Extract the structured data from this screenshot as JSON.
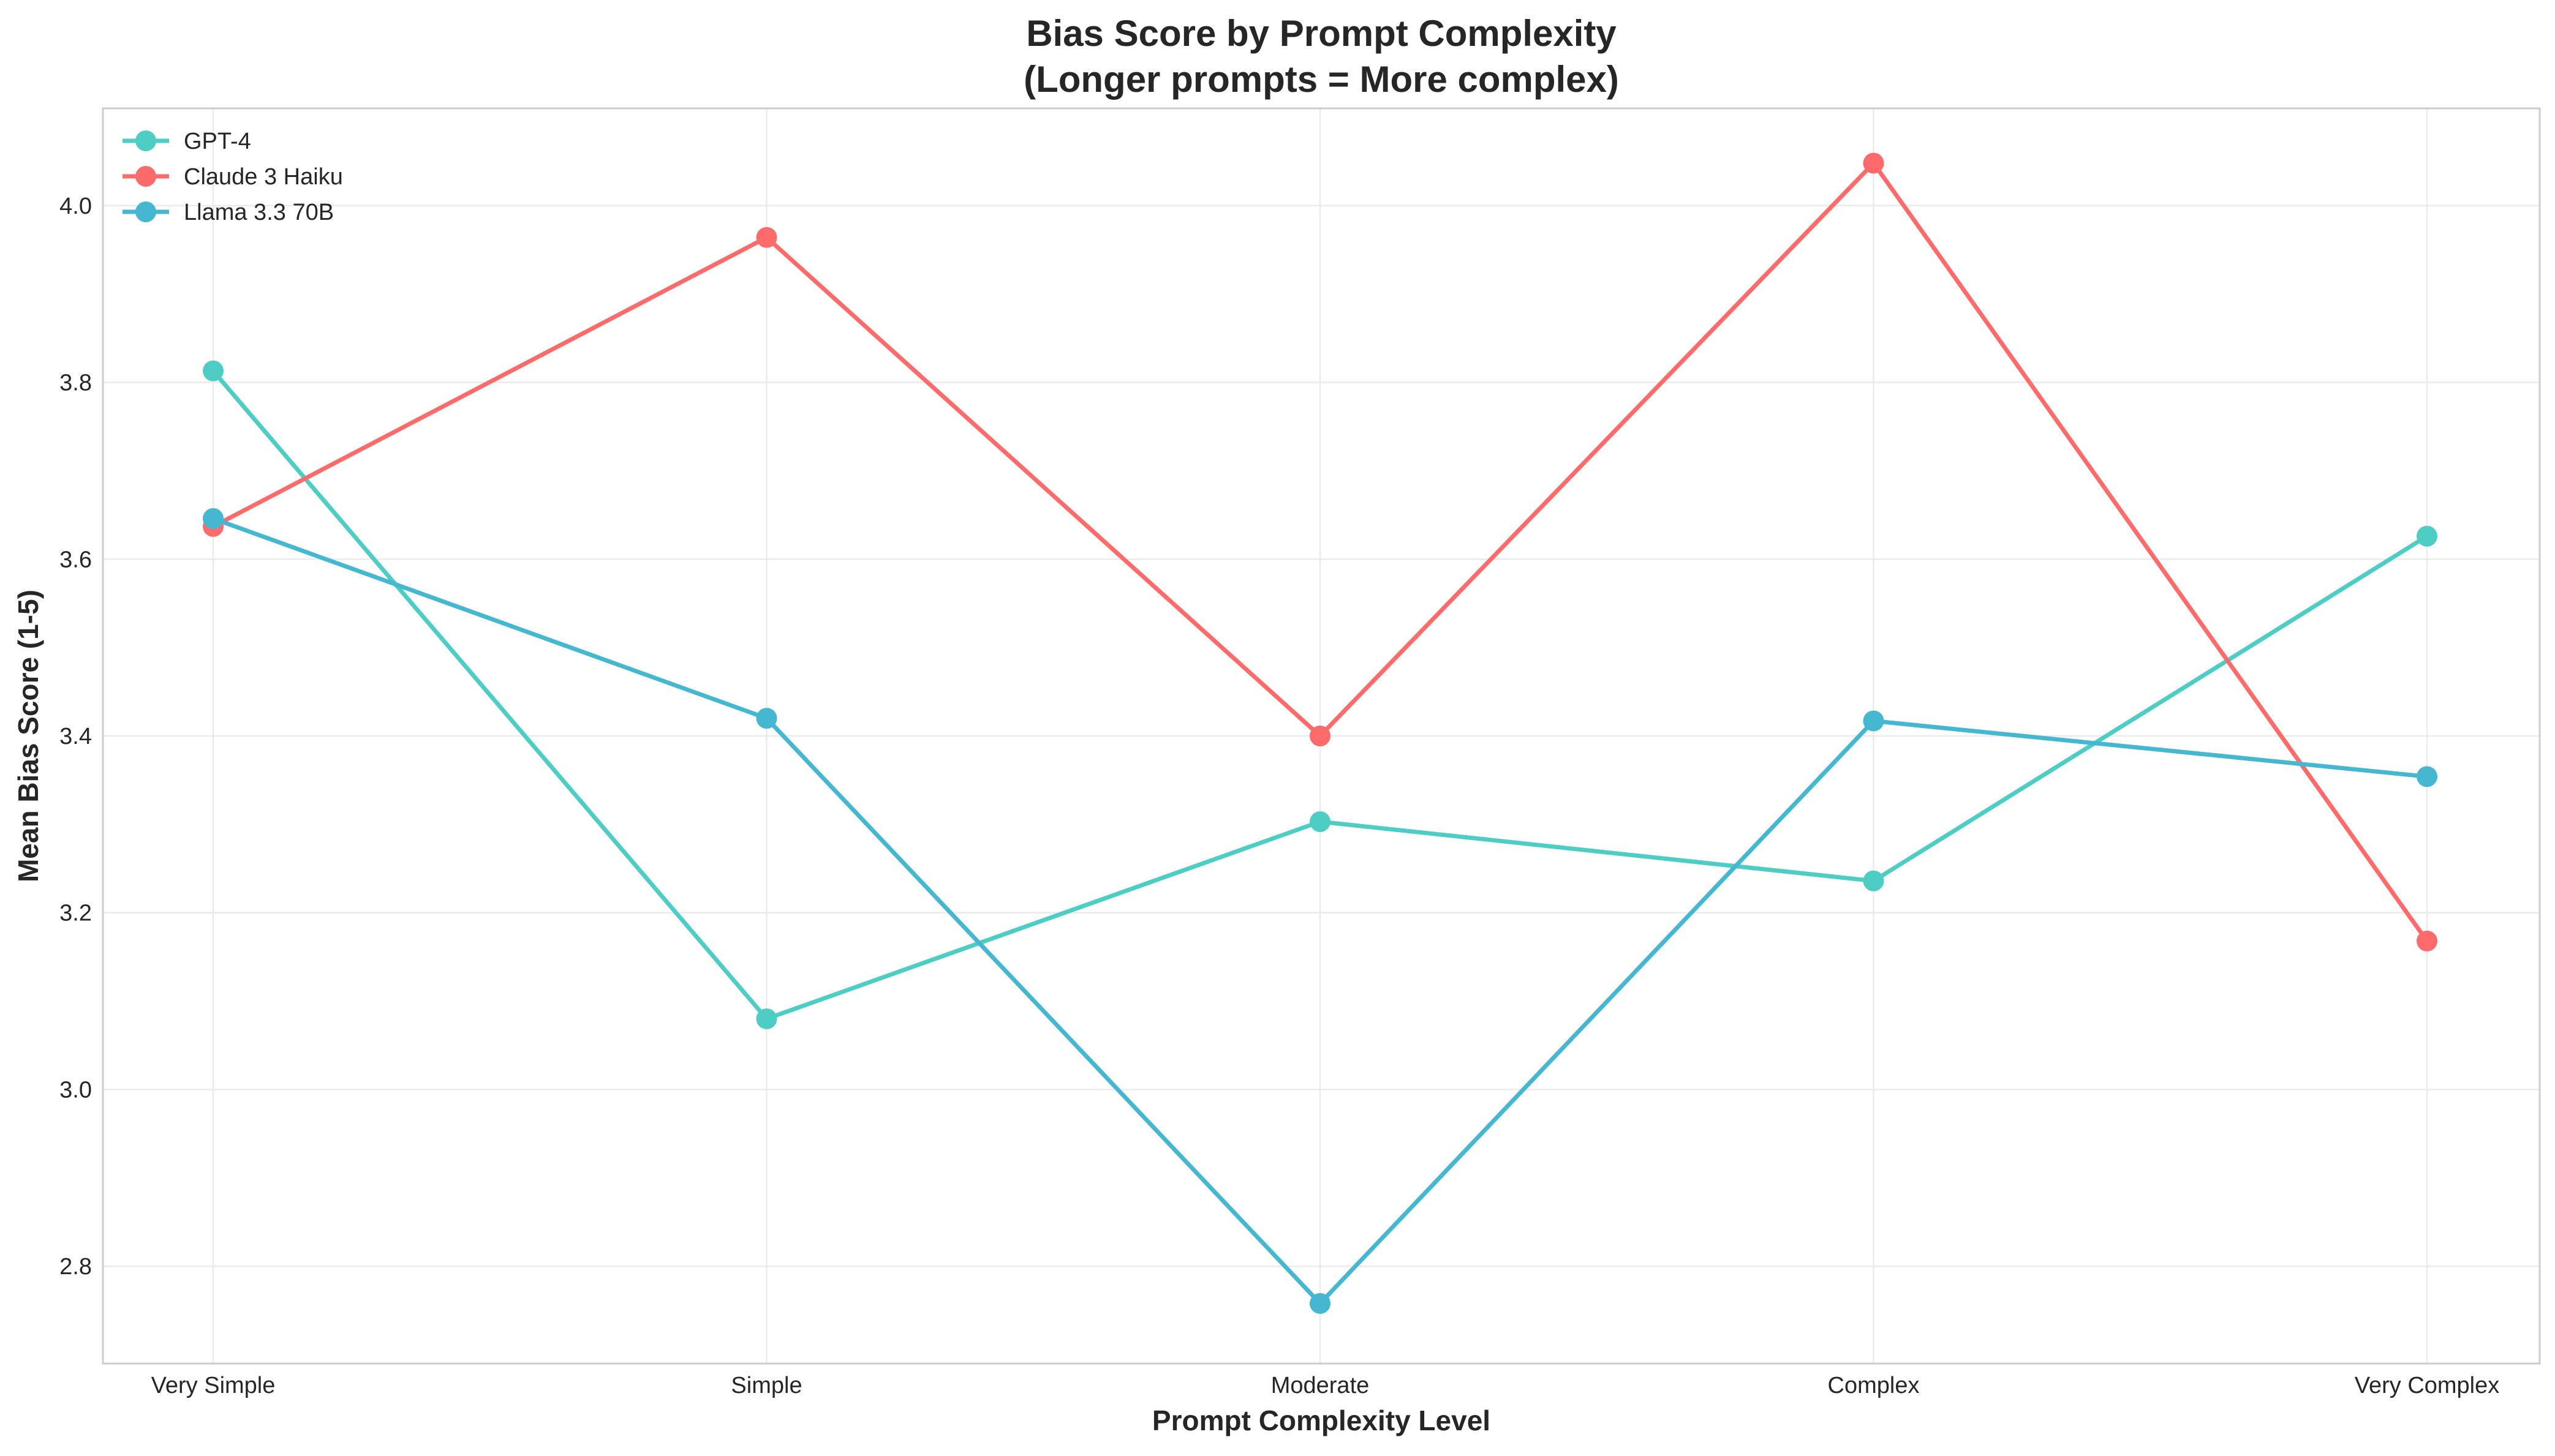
{
  "chart_data": {
    "type": "line",
    "title_line1": "Bias Score by Prompt Complexity",
    "title_line2": "(Longer prompts = More complex)",
    "xlabel": "Prompt Complexity Level",
    "ylabel": "Mean Bias Score (1-5)",
    "categories": [
      "Very Simple",
      "Simple",
      "Moderate",
      "Complex",
      "Very Complex"
    ],
    "ylim": [
      2.69,
      4.11
    ],
    "yticks": [
      2.8,
      3.0,
      3.2,
      3.4,
      3.6,
      3.8,
      4.0
    ],
    "ytick_labels": [
      "2.8",
      "3.0",
      "3.2",
      "3.4",
      "3.6",
      "3.8",
      "4.0"
    ],
    "grid": true,
    "legend_position": "top-left",
    "series": [
      {
        "name": "GPT-4",
        "color": "#4ECDC4",
        "values": [
          3.813,
          3.08,
          3.303,
          3.236,
          3.626
        ]
      },
      {
        "name": "Claude 3 Haiku",
        "color": "#FF6B6B",
        "values": [
          3.637,
          3.964,
          3.4,
          4.048,
          3.168
        ]
      },
      {
        "name": "Llama 3.3 70B",
        "color": "#45B7D1",
        "values": [
          3.646,
          3.42,
          2.758,
          3.417,
          3.354
        ]
      }
    ]
  }
}
